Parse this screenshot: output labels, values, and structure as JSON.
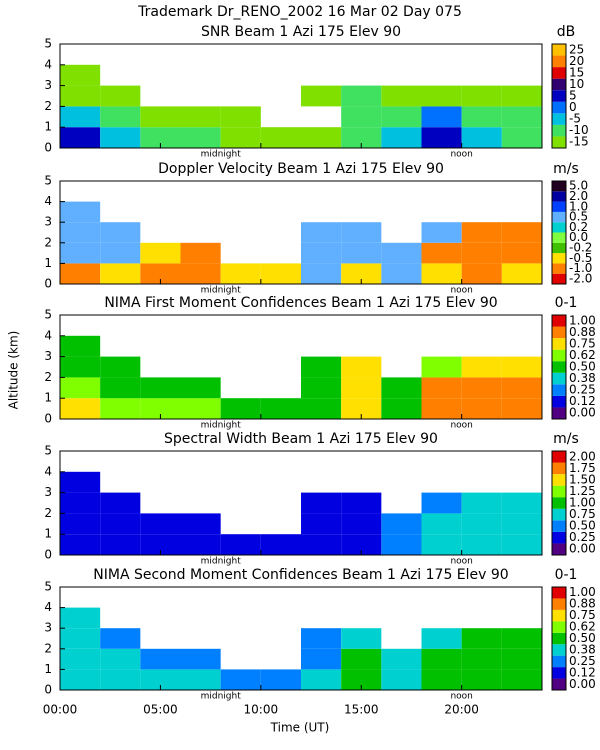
{
  "figure": {
    "title": "Trademark Dr_RENO_2002  16 Mar 02 Day 075",
    "xlabel": "Time (UT)",
    "ylabel": "Altitude (km)",
    "xlim": [
      0,
      24
    ],
    "xticks": [
      {
        "value": 0,
        "label": "00:00"
      },
      {
        "value": 5,
        "label": "05:00"
      },
      {
        "value": 10,
        "label": "10:00"
      },
      {
        "value": 15,
        "label": "15:00"
      },
      {
        "value": 20,
        "label": "20:00"
      }
    ],
    "annotations": [
      {
        "text": "midnight",
        "x": 8
      },
      {
        "text": "noon",
        "x": 20
      }
    ]
  },
  "chart_data": [
    {
      "type": "heatmap",
      "title": "SNR Beam 1 Azi 175 Elev 90",
      "unit": "dB",
      "xbins": [
        0,
        2,
        4,
        6,
        8,
        10,
        12,
        14,
        16,
        18,
        20,
        22,
        24
      ],
      "ybins": [
        0,
        1,
        2,
        3,
        4,
        5
      ],
      "ylim": [
        0,
        5
      ],
      "yticks": [
        0,
        1,
        2,
        3,
        4,
        5
      ],
      "cticks": [
        -15,
        -10,
        -5,
        0,
        5,
        10,
        15,
        20,
        25
      ],
      "colors": [
        "#80e000",
        "#40e060",
        "#00c0e0",
        "#0070ff",
        "#0000c0",
        "#300070",
        "#e00000",
        "#ff8000",
        "#ffc000"
      ],
      "z": [
        [
          5,
          -5,
          -10,
          -10,
          -12,
          -12,
          -12,
          -10,
          -5,
          8,
          -5,
          -10
        ],
        [
          -5,
          -10,
          -12,
          -12,
          -12,
          null,
          null,
          -8,
          -8,
          0,
          -10,
          -10
        ],
        [
          -12,
          -12,
          null,
          null,
          null,
          null,
          -12,
          -10,
          -12,
          -12,
          -12,
          -12
        ],
        [
          -12,
          null,
          null,
          null,
          null,
          null,
          null,
          null,
          null,
          null,
          null,
          null
        ],
        [
          null,
          null,
          null,
          null,
          null,
          null,
          null,
          null,
          null,
          null,
          null,
          null
        ]
      ]
    },
    {
      "type": "heatmap",
      "title": "Doppler Velocity Beam 1 Azi 175 Elev 90",
      "unit": "m/s",
      "xbins": [
        0,
        2,
        4,
        6,
        8,
        10,
        12,
        14,
        16,
        18,
        20,
        22,
        24
      ],
      "ybins": [
        0,
        1,
        2,
        3,
        4,
        5
      ],
      "ylim": [
        0,
        5
      ],
      "yticks": [
        0,
        1,
        2,
        3,
        4,
        5
      ],
      "cticks": [
        {
          "value": -2,
          "label": "-2.0"
        },
        {
          "value": -1,
          "label": "-1.0"
        },
        -0.5,
        -0.2,
        {
          "value": 0,
          "label": "0.0"
        },
        0.2,
        0.5,
        {
          "value": 1,
          "label": "1.0"
        },
        {
          "value": 2,
          "label": "2.0"
        },
        {
          "value": 5,
          "label": "5.0"
        }
      ],
      "colors": [
        "#e00000",
        "#ff8000",
        "#ffe000",
        "#40c000",
        "#80ff40",
        "#00d0d0",
        "#60b0ff",
        "#0040ff",
        "#0000a0",
        "#200020"
      ],
      "z": [
        [
          -1,
          -0.5,
          -1,
          -1,
          -0.5,
          -0.5,
          0.5,
          -0.5,
          0.5,
          -0.5,
          -1,
          -0.5
        ],
        [
          0.5,
          0.5,
          -0.5,
          -1,
          null,
          null,
          0.5,
          0.5,
          0.5,
          -1,
          -1,
          -1
        ],
        [
          0.5,
          0.5,
          null,
          null,
          null,
          null,
          0.5,
          0.5,
          null,
          0.5,
          -1,
          -1
        ],
        [
          0.5,
          null,
          null,
          null,
          null,
          null,
          null,
          null,
          null,
          null,
          null,
          null
        ],
        [
          null,
          null,
          null,
          null,
          null,
          null,
          null,
          null,
          null,
          null,
          null,
          null
        ]
      ]
    },
    {
      "type": "heatmap",
      "title": "NIMA First Moment Confidences Beam 1 Azi 175 Elev 90",
      "unit": "0-1",
      "xbins": [
        0,
        2,
        4,
        6,
        8,
        10,
        12,
        14,
        16,
        18,
        20,
        22,
        24
      ],
      "ybins": [
        0,
        1,
        2,
        3,
        4,
        5
      ],
      "ylim": [
        0,
        5
      ],
      "yticks": [
        0,
        1,
        2,
        3,
        4,
        5
      ],
      "cticks": [
        {
          "value": 0,
          "label": "0.00"
        },
        0.12,
        0.25,
        0.38,
        {
          "value": 0.5,
          "label": "0.50"
        },
        0.62,
        0.75,
        0.88,
        {
          "value": 1,
          "label": "1.00"
        }
      ],
      "colors": [
        "#500080",
        "#0000e0",
        "#0080ff",
        "#00d0d0",
        "#00c000",
        "#80ff00",
        "#ffe000",
        "#ff8000",
        "#e00000"
      ],
      "z": [
        [
          0.75,
          0.62,
          0.62,
          0.62,
          0.5,
          0.5,
          0.5,
          0.75,
          0.5,
          0.88,
          0.88,
          0.88
        ],
        [
          0.62,
          0.5,
          0.5,
          0.5,
          null,
          null,
          0.5,
          0.75,
          0.5,
          0.88,
          0.88,
          0.88
        ],
        [
          0.5,
          0.5,
          null,
          null,
          null,
          null,
          0.5,
          0.75,
          null,
          0.62,
          0.75,
          0.75
        ],
        [
          0.5,
          null,
          null,
          null,
          null,
          null,
          null,
          null,
          null,
          null,
          null,
          null
        ],
        [
          null,
          null,
          null,
          null,
          null,
          null,
          null,
          null,
          null,
          null,
          null,
          null
        ]
      ]
    },
    {
      "type": "heatmap",
      "title": "Spectral Width Beam 1 Azi 175 Elev 90",
      "unit": "m/s",
      "xbins": [
        0,
        2,
        4,
        6,
        8,
        10,
        12,
        14,
        16,
        18,
        20,
        22,
        24
      ],
      "ybins": [
        0,
        1,
        2,
        3,
        4,
        5
      ],
      "ylim": [
        0,
        5
      ],
      "yticks": [
        0,
        1,
        2,
        3,
        4,
        5
      ],
      "cticks": [
        {
          "value": 0,
          "label": "0.00"
        },
        0.25,
        {
          "value": 0.5,
          "label": "0.50"
        },
        0.75,
        {
          "value": 1,
          "label": "1.00"
        },
        1.25,
        {
          "value": 1.5,
          "label": "1.50"
        },
        1.75,
        {
          "value": 2,
          "label": "2.00"
        }
      ],
      "colors": [
        "#500080",
        "#0000e0",
        "#0080ff",
        "#00d0d0",
        "#00c000",
        "#80ff00",
        "#ffe000",
        "#ff8000",
        "#e00000"
      ],
      "z": [
        [
          0.25,
          0.25,
          0.25,
          0.25,
          0.25,
          0.25,
          0.25,
          0.25,
          0.5,
          0.75,
          0.75,
          0.75
        ],
        [
          0.25,
          0.25,
          0.25,
          0.25,
          null,
          null,
          0.25,
          0.25,
          0.5,
          0.75,
          0.75,
          0.75
        ],
        [
          0.25,
          0.25,
          null,
          null,
          null,
          null,
          0.25,
          0.25,
          null,
          0.5,
          0.75,
          0.75
        ],
        [
          0.25,
          null,
          null,
          null,
          null,
          null,
          null,
          null,
          null,
          null,
          null,
          null
        ],
        [
          null,
          null,
          null,
          null,
          null,
          null,
          null,
          null,
          null,
          null,
          null,
          null
        ]
      ]
    },
    {
      "type": "heatmap",
      "title": "NIMA Second Moment Confidences Beam 1 Azi 175 Elev 90",
      "unit": "0-1",
      "xbins": [
        0,
        2,
        4,
        6,
        8,
        10,
        12,
        14,
        16,
        18,
        20,
        22,
        24
      ],
      "ybins": [
        0,
        1,
        2,
        3,
        4,
        5
      ],
      "ylim": [
        0,
        5
      ],
      "yticks": [
        0,
        1,
        2,
        3,
        4,
        5
      ],
      "cticks": [
        {
          "value": 0,
          "label": "0.00"
        },
        0.12,
        0.25,
        0.38,
        {
          "value": 0.5,
          "label": "0.50"
        },
        0.62,
        0.75,
        0.88,
        {
          "value": 1,
          "label": "1.00"
        }
      ],
      "colors": [
        "#500080",
        "#0000e0",
        "#0080ff",
        "#00d0d0",
        "#00c000",
        "#80ff00",
        "#ffe000",
        "#ff8000",
        "#e00000"
      ],
      "z": [
        [
          0.38,
          0.38,
          0.38,
          0.38,
          0.25,
          0.25,
          0.38,
          0.5,
          0.38,
          0.5,
          0.5,
          0.5
        ],
        [
          0.38,
          0.38,
          0.25,
          0.25,
          null,
          null,
          0.25,
          0.5,
          0.38,
          0.5,
          0.5,
          0.5
        ],
        [
          0.38,
          0.25,
          null,
          null,
          null,
          null,
          0.25,
          0.38,
          null,
          0.38,
          0.5,
          0.5
        ],
        [
          0.38,
          null,
          null,
          null,
          null,
          null,
          null,
          null,
          null,
          null,
          null,
          null
        ],
        [
          null,
          null,
          null,
          null,
          null,
          null,
          null,
          null,
          null,
          null,
          null,
          null
        ]
      ]
    }
  ]
}
